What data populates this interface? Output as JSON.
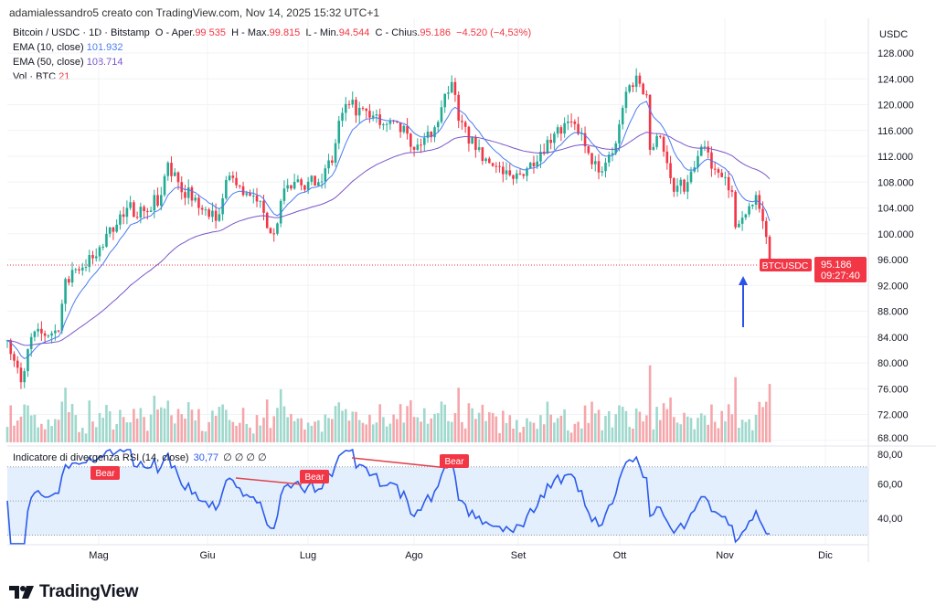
{
  "attribution": "adamialessandro5 creato con TradingView.com, Nov 14, 2025 15:32 UTC+1",
  "legend": {
    "symbol": "Bitcoin / USDC · 1D · Bitstamp",
    "open_label": "O - Aper.",
    "open": "99.535",
    "high_label": "H - Max.",
    "high": "99.815",
    "low_label": "L - Min.",
    "low": "94.544",
    "close_label": "C - Chius.",
    "close": "95.186",
    "change": "−4.520 (−4,53%)",
    "ema10_label": "EMA (10, close)",
    "ema10": "101.932",
    "ema50_label": "EMA (50, close)",
    "ema50": "108.714",
    "vol_label": "Vol · BTC",
    "vol": "21"
  },
  "price_axis": {
    "currency": "USDC",
    "ticks": [
      "128.000",
      "124.000",
      "120.000",
      "116.000",
      "112.000",
      "108.000",
      "104.000",
      "100.000",
      "96.000",
      "92.000",
      "88.000",
      "84.000",
      "80.000",
      "76.000",
      "72.000",
      "68.000"
    ],
    "last_symbol": "BTCUSDC",
    "last_price": "95.186",
    "countdown": "09:27:40"
  },
  "rsi": {
    "label": "Indicatore di divergenza RSI (14, close)",
    "value": "30,77",
    "extras": "∅ ∅ ∅ ∅",
    "ticks": [
      "80,00",
      "60,00",
      "40,00"
    ],
    "bear_labels": [
      "Bear",
      "Bear",
      "Bear"
    ]
  },
  "time_axis": [
    "Mag",
    "Giu",
    "Lug",
    "Ago",
    "Set",
    "Ott",
    "Nov",
    "Dic"
  ],
  "logo": "TradingView",
  "colors": {
    "up": "#22ab94",
    "down": "#f23645",
    "ema10": "#4a7bf0",
    "ema50": "#7b55c9",
    "rsi": "#2c5bea",
    "arrow": "#2a52e8"
  },
  "chart_data": {
    "type": "candlestick",
    "title": "Bitcoin / USDC · 1D · Bitstamp",
    "ylim": [
      68000,
      128000
    ],
    "x_range": [
      "2025-04-05",
      "2025-12-05"
    ],
    "grid": true,
    "close": [
      [
        "2025-04-05",
        83500
      ],
      [
        "2025-04-09",
        77000
      ],
      [
        "2025-04-12",
        84000
      ],
      [
        "2025-04-20",
        85000
      ],
      [
        "2025-04-22",
        93000
      ],
      [
        "2025-04-25",
        94500
      ],
      [
        "2025-05-01",
        96500
      ],
      [
        "2025-05-08",
        103000
      ],
      [
        "2025-05-10",
        104000
      ],
      [
        "2025-05-15",
        103500
      ],
      [
        "2025-05-20",
        106000
      ],
      [
        "2025-05-22",
        111000
      ],
      [
        "2025-05-25",
        108000
      ],
      [
        "2025-05-31",
        104000
      ],
      [
        "2025-06-05",
        102000
      ],
      [
        "2025-06-09",
        109000
      ],
      [
        "2025-06-13",
        106000
      ],
      [
        "2025-06-17",
        105000
      ],
      [
        "2025-06-22",
        100000
      ],
      [
        "2025-06-25",
        107000
      ],
      [
        "2025-06-30",
        107500
      ],
      [
        "2025-07-05",
        108000
      ],
      [
        "2025-07-09",
        111000
      ],
      [
        "2025-07-11",
        117500
      ],
      [
        "2025-07-14",
        120000
      ],
      [
        "2025-07-20",
        118000
      ],
      [
        "2025-07-25",
        117000
      ],
      [
        "2025-07-31",
        115500
      ],
      [
        "2025-08-02",
        113000
      ],
      [
        "2025-08-08",
        116500
      ],
      [
        "2025-08-13",
        123500
      ],
      [
        "2025-08-15",
        117500
      ],
      [
        "2025-08-20",
        113000
      ],
      [
        "2025-08-25",
        110500
      ],
      [
        "2025-08-31",
        108500
      ],
      [
        "2025-09-05",
        111000
      ],
      [
        "2025-09-12",
        115500
      ],
      [
        "2025-09-18",
        117000
      ],
      [
        "2025-09-22",
        112500
      ],
      [
        "2025-09-25",
        109500
      ],
      [
        "2025-09-30",
        114000
      ],
      [
        "2025-10-03",
        122000
      ],
      [
        "2025-10-06",
        124500
      ],
      [
        "2025-10-09",
        121500
      ],
      [
        "2025-10-10",
        113000
      ],
      [
        "2025-10-13",
        115000
      ],
      [
        "2025-10-17",
        106500
      ],
      [
        "2025-10-21",
        108000
      ],
      [
        "2025-10-26",
        113500
      ],
      [
        "2025-10-29",
        110000
      ],
      [
        "2025-11-03",
        106500
      ],
      [
        "2025-11-04",
        101000
      ],
      [
        "2025-11-07",
        103000
      ],
      [
        "2025-11-10",
        106000
      ],
      [
        "2025-11-13",
        99500
      ],
      [
        "2025-11-14",
        95186
      ]
    ],
    "last_candle": {
      "date": "2025-11-14",
      "open": 99535,
      "high": 99815,
      "low": 94544,
      "close": 95186
    },
    "ema10_last": 101932,
    "ema50_last": 108714,
    "rsi_last": 30.77,
    "rsi_ylim": [
      20,
      82
    ]
  }
}
